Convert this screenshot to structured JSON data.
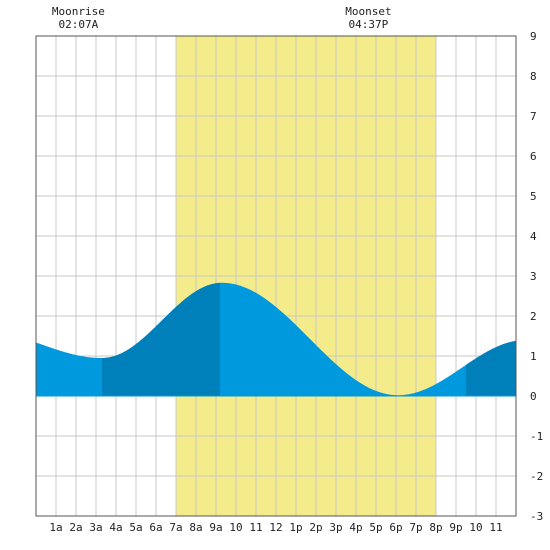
{
  "chart_data": {
    "type": "area",
    "x": [
      0,
      1,
      2,
      3,
      4,
      5,
      6,
      7,
      8,
      9,
      10,
      11,
      12,
      13,
      14,
      15,
      16,
      17,
      18,
      19,
      20,
      21,
      22,
      23,
      24
    ],
    "xlim": [
      0,
      24
    ],
    "ylim": [
      -3,
      9
    ],
    "x_tick_labels": [
      "1a",
      "2a",
      "3a",
      "4a",
      "5a",
      "6a",
      "7a",
      "8a",
      "9a",
      "10",
      "11",
      "12",
      "1p",
      "2p",
      "3p",
      "4p",
      "5p",
      "6p",
      "7p",
      "8p",
      "9p",
      "10",
      "11"
    ],
    "y_ticks": [
      -3,
      -2,
      -1,
      0,
      1,
      2,
      3,
      4,
      5,
      6,
      7,
      8,
      9
    ],
    "tide_curve": {
      "low1": {
        "t": 3.3,
        "h": 0.95
      },
      "high": {
        "t": 9.3,
        "h": 2.83
      },
      "low2": {
        "t": 18.1,
        "h": 0.02
      },
      "end_h": 1.32
    },
    "daylight": {
      "start": 7.0,
      "end": 20.0
    },
    "dark_shade_ranges": [
      [
        3.3,
        9.2
      ],
      [
        21.5,
        24
      ]
    ],
    "annotations": [
      {
        "name": "Moonrise",
        "time": "02:07A",
        "t": 2.12
      },
      {
        "name": "Moonset",
        "time": "04:37P",
        "t": 16.62
      }
    ],
    "grid": true,
    "colors": {
      "water_light": "#0099DD",
      "water_dark": "#0080BB",
      "daylight": "#F4EB8A",
      "grid": "#C8C8C8",
      "zero_line": "#888888",
      "border": "#555555"
    }
  }
}
